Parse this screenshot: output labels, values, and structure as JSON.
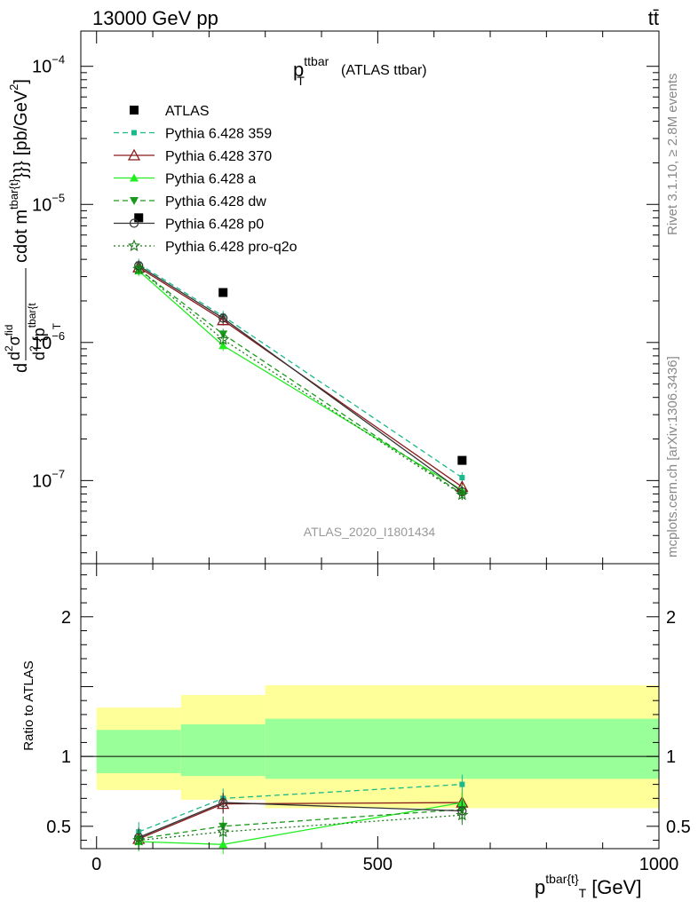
{
  "header": {
    "left": "13000 GeV pp",
    "right": "tt̄"
  },
  "side_labels": {
    "rivet": "Rivet 3.1.10, ≥ 2.8M events",
    "mcplots": "mcplots.cern.ch [arXiv:1306.3436]"
  },
  "colors": {
    "ATLAS": "#000000",
    "Pythia 6.428 359": "#1ab88a",
    "Pythia 6.428 370": "#8b1a1a",
    "Pythia 6.428 a": "#22ee22",
    "Pythia 6.428 dw": "#1a9a1a",
    "Pythia 6.428 p0": "#333333",
    "Pythia 6.428 pro-q2o": "#1a7a1a",
    "band_outer": "#ffff99",
    "band_inner": "#99ff99"
  },
  "chart_data": [
    {
      "type": "line",
      "title": "p_T^ttbar (ATLAS ttbar)",
      "title_parts": {
        "main": "p",
        "sup": "ttbar",
        "sub": "T",
        "suffix": "(ATLAS ttbar)"
      },
      "ylabel": "d d²σ^{fid} / d² {p_T^{tbar{t}}} cdot m^{tbar{t}}}} [pb/GeV²]",
      "ylabel_parts": {
        "d": "d",
        "num_d": "d",
        "num_sup2": "2",
        "num_sigma": "σ",
        "num_fid": "fid",
        "den_d": "d",
        "den_sup2": "2",
        "den_brace": "{p",
        "den_sup": "tbar{t",
        "den_sub": "T",
        "cdot": "cdot m",
        "cdot_sup": "tbar{t}",
        "cdot_close": "}}}",
        "unit": "[pb/GeV",
        "unit_sup": "2",
        "unit_close": "]"
      },
      "yscale": "log",
      "ylim": [
        2.5e-08,
        0.00018
      ],
      "xlim": [
        -28,
        1000
      ],
      "y_tick_labels": [
        "10",
        "10",
        "10",
        "10"
      ],
      "y_tick_exps": [
        "−4",
        "−5",
        "−6",
        "−7"
      ],
      "y_tick_values": [
        0.0001,
        1e-05,
        1e-06,
        1e-07
      ],
      "watermark": "ATLAS_2020_I1801434",
      "legend_position": "top-left",
      "x": [
        75,
        225,
        650
      ],
      "series": [
        {
          "name": "ATLAS",
          "values": [
            8e-06,
            2.3e-06,
            1.4e-07
          ],
          "marker": "filled-square",
          "style": "none"
        },
        {
          "name": "Pythia 6.428 359",
          "values": [
            3.7e-06,
            1.55e-06,
            1.05e-07
          ],
          "marker": "small-square",
          "style": "dashed"
        },
        {
          "name": "Pythia 6.428 370",
          "values": [
            3.5e-06,
            1.45e-06,
            9e-08
          ],
          "marker": "open-triangle",
          "style": "solid"
        },
        {
          "name": "Pythia 6.428 a",
          "values": [
            3.3e-06,
            9.5e-07,
            8.5e-08
          ],
          "marker": "filled-triangle",
          "style": "solid"
        },
        {
          "name": "Pythia 6.428 dw",
          "values": [
            3.4e-06,
            1.15e-06,
            8e-08
          ],
          "marker": "filled-triangle-down",
          "style": "dashed"
        },
        {
          "name": "Pythia 6.428 p0",
          "values": [
            3.6e-06,
            1.5e-06,
            8.3e-08
          ],
          "marker": "open-circle",
          "style": "solid"
        },
        {
          "name": "Pythia 6.428 pro-q2o",
          "values": [
            3.4e-06,
            1.05e-06,
            7.9e-08
          ],
          "marker": "open-star",
          "style": "dotted"
        }
      ]
    },
    {
      "type": "line",
      "ylabel": "Ratio to ATLAS",
      "yscale": "linear",
      "ylim": [
        0.34,
        2.38
      ],
      "xlim": [
        -28,
        1000
      ],
      "y_ticks": [
        "0.5",
        "1",
        "2"
      ],
      "y_tick_values": [
        0.5,
        1,
        2
      ],
      "x_ticks": [
        "0",
        "500",
        "1000"
      ],
      "x_tick_values": [
        0,
        500,
        1000
      ],
      "xlabel_parts": {
        "main": "p",
        "sup": "tbar{t}",
        "sub": "T",
        "unit": "[GeV]"
      },
      "bands": [
        {
          "x0": 0,
          "x1": 150,
          "outer": [
            0.76,
            1.35
          ],
          "inner": [
            0.88,
            1.19
          ]
        },
        {
          "x0": 150,
          "x1": 300,
          "outer": [
            0.69,
            1.44
          ],
          "inner": [
            0.86,
            1.23
          ]
        },
        {
          "x0": 300,
          "x1": 1000,
          "outer": [
            0.63,
            1.51
          ],
          "inner": [
            0.84,
            1.27
          ]
        }
      ],
      "x": [
        75,
        225,
        650
      ],
      "series": [
        {
          "name": "Pythia 6.428 359",
          "values": [
            0.46,
            0.7,
            0.8
          ]
        },
        {
          "name": "Pythia 6.428 370",
          "values": [
            0.41,
            0.66,
            0.67
          ]
        },
        {
          "name": "Pythia 6.428 a",
          "values": [
            0.39,
            0.37,
            0.67
          ]
        },
        {
          "name": "Pythia 6.428 dw",
          "values": [
            0.41,
            0.5,
            0.62
          ]
        },
        {
          "name": "Pythia 6.428 p0",
          "values": [
            0.42,
            0.67,
            0.61
          ]
        },
        {
          "name": "Pythia 6.428 pro-q2o",
          "values": [
            0.4,
            0.46,
            0.58
          ]
        }
      ]
    }
  ]
}
